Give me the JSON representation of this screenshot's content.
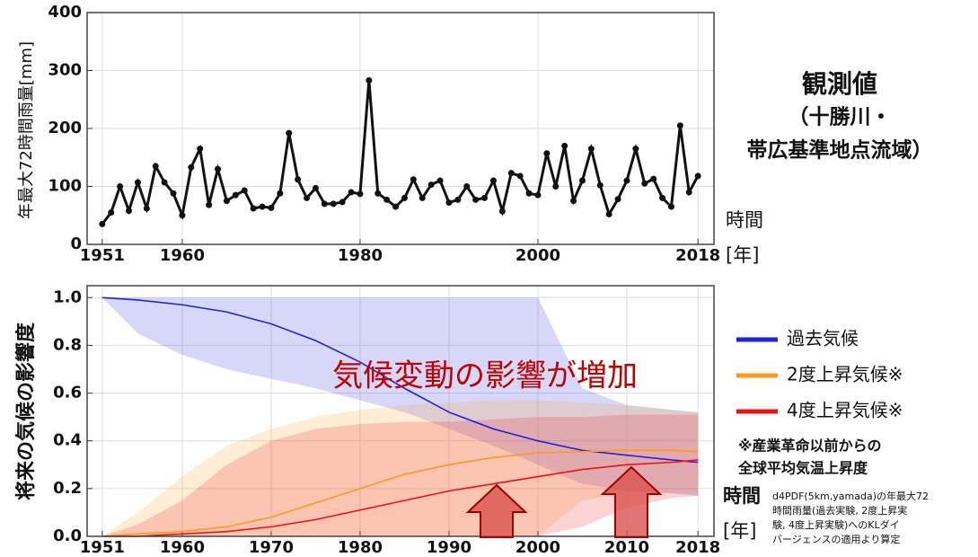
{
  "chart_data": [
    {
      "type": "line",
      "title": [
        "観測値",
        "（十勝川・",
        "帯広基準地点流域）"
      ],
      "y_label": "年最大72時間雨量[mm]",
      "x_label": [
        "時間",
        "[年]"
      ],
      "x": [
        1951,
        1952,
        1953,
        1954,
        1955,
        1956,
        1957,
        1958,
        1959,
        1960,
        1961,
        1962,
        1963,
        1964,
        1965,
        1966,
        1967,
        1968,
        1969,
        1970,
        1971,
        1972,
        1973,
        1974,
        1975,
        1976,
        1977,
        1978,
        1979,
        1980,
        1981,
        1982,
        1983,
        1984,
        1985,
        1986,
        1987,
        1988,
        1989,
        1990,
        1991,
        1992,
        1993,
        1994,
        1995,
        1996,
        1997,
        1998,
        1999,
        2000,
        2001,
        2002,
        2003,
        2004,
        2005,
        2006,
        2007,
        2008,
        2009,
        2010,
        2011,
        2012,
        2013,
        2014,
        2015,
        2016,
        2017,
        2018
      ],
      "series": [
        {
          "name": "年最大72時間雨量",
          "color": "#111111",
          "values": [
            35,
            55,
            100,
            58,
            107,
            62,
            135,
            107,
            88,
            50,
            133,
            165,
            68,
            130,
            75,
            85,
            93,
            62,
            65,
            63,
            88,
            192,
            112,
            80,
            97,
            70,
            70,
            73,
            90,
            87,
            283,
            88,
            77,
            65,
            80,
            112,
            80,
            103,
            110,
            72,
            77,
            100,
            77,
            80,
            110,
            57,
            123,
            118,
            88,
            85,
            157,
            100,
            170,
            75,
            110,
            165,
            102,
            52,
            78,
            110,
            165,
            105,
            113,
            80,
            65,
            205,
            90,
            118
          ]
        }
      ],
      "markers": true,
      "xlim": [
        1949.3,
        2019.8
      ],
      "xticks": [
        1951,
        1960,
        1980,
        2000,
        2018
      ],
      "ylim": [
        0,
        400
      ],
      "yticks": [
        0,
        100,
        200,
        300,
        400
      ],
      "grid": true
    },
    {
      "type": "line",
      "y_label": "将来の気候の影響度",
      "x_label": [
        "時間",
        "[年]"
      ],
      "annotation": "気候変動の影響が増加",
      "notes": [
        "※産業革命以前からの",
        "全球平均気温上昇度"
      ],
      "source": [
        "d4PDF(5km,yamada)の年最大72",
        "時間雨量(過去実験, 2度上昇実",
        "験, 4度上昇実験)へのKLダイ",
        "バージェンスの適用より算定"
      ],
      "x": [
        1951,
        1955,
        1960,
        1965,
        1970,
        1975,
        1980,
        1985,
        1990,
        1995,
        2000,
        2005,
        2010,
        2015,
        2018
      ],
      "series": [
        {
          "name": "過去気候",
          "color": "#2222dd",
          "values": [
            1.0,
            0.99,
            0.97,
            0.94,
            0.89,
            0.82,
            0.73,
            0.62,
            0.52,
            0.45,
            0.4,
            0.36,
            0.34,
            0.32,
            0.31
          ],
          "upper": [
            1.0,
            1.0,
            1.0,
            1.0,
            1.0,
            1.0,
            1.0,
            1.0,
            1.0,
            1.0,
            1.0,
            0.62,
            0.55,
            0.53,
            0.52
          ],
          "lower": [
            1.0,
            0.85,
            0.76,
            0.7,
            0.66,
            0.62,
            0.57,
            0.52,
            0.45,
            0.38,
            0.3,
            0.22,
            0.19,
            0.18,
            0.17
          ]
        },
        {
          "name": "2度上昇気候※",
          "color": "#ff9a1a",
          "values": [
            0.0,
            0.01,
            0.02,
            0.04,
            0.08,
            0.14,
            0.2,
            0.26,
            0.3,
            0.33,
            0.35,
            0.355,
            0.36,
            0.36,
            0.355
          ],
          "upper": [
            0.0,
            0.1,
            0.25,
            0.38,
            0.45,
            0.5,
            0.53,
            0.55,
            0.56,
            0.57,
            0.57,
            0.56,
            0.55,
            0.53,
            0.52
          ],
          "lower": [
            0.0,
            0.0,
            0.0,
            0.0,
            0.0,
            0.0,
            0.0,
            0.0,
            0.0,
            0.0,
            0.0,
            0.15,
            0.18,
            0.18,
            0.18
          ]
        },
        {
          "name": "4度上昇気候※",
          "color": "#ee1111",
          "values": [
            0.0,
            0.0,
            0.01,
            0.02,
            0.04,
            0.07,
            0.11,
            0.15,
            0.19,
            0.22,
            0.25,
            0.28,
            0.3,
            0.31,
            0.32
          ],
          "upper": [
            0.0,
            0.05,
            0.15,
            0.3,
            0.4,
            0.45,
            0.47,
            0.48,
            0.48,
            0.49,
            0.5,
            0.5,
            0.51,
            0.51,
            0.51
          ],
          "lower": [
            0.0,
            0.0,
            0.0,
            0.0,
            0.0,
            0.0,
            0.0,
            0.0,
            0.0,
            0.0,
            0.0,
            0.04,
            0.12,
            0.16,
            0.17
          ]
        }
      ],
      "legend": "right",
      "xlim": [
        1949.3,
        2019.8
      ],
      "xticks": [
        1951,
        1960,
        1970,
        1980,
        1990,
        2000,
        2010,
        2018
      ],
      "ylim": [
        0,
        1.05
      ],
      "yticks": [
        {
          "value": 0,
          "label": "0.0"
        },
        0.2,
        0.4,
        0.6,
        0.8,
        {
          "value": 1,
          "label": "1.0"
        }
      ],
      "grid": true
    }
  ]
}
